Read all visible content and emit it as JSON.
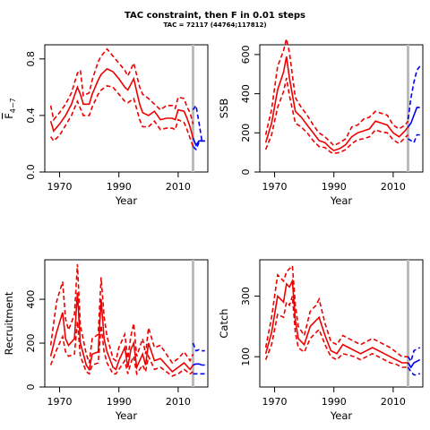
{
  "title": "TAC constraint, then F in 0.01 steps",
  "subtitle": "TAC = 72117 (44764;117812)",
  "chart_data": [
    {
      "type": "line",
      "id": "f",
      "ylabel_main": "F",
      "ylabel_sub": "4−7",
      "xlabel": "Year",
      "xlim": [
        1965,
        2020
      ],
      "ylim": [
        0,
        0.9
      ],
      "xticks": [
        1970,
        1990,
        2010
      ],
      "yticks": [
        0,
        0.4,
        0.8
      ],
      "ytick_labels": [
        "0.0",
        "0.4",
        "0.8"
      ],
      "vline": 2015,
      "historical": {
        "x": [
          1967,
          1968,
          1970,
          1972,
          1974,
          1976,
          1977,
          1978,
          1980,
          1981,
          1983,
          1984,
          1986,
          1988,
          1990,
          1992,
          1993,
          1995,
          1997,
          1998,
          2000,
          2002,
          2004,
          2006,
          2008,
          2009,
          2010,
          2012,
          2013,
          2014,
          2015
        ],
        "median": [
          0.36,
          0.29,
          0.34,
          0.4,
          0.48,
          0.6,
          0.55,
          0.48,
          0.48,
          0.55,
          0.65,
          0.69,
          0.73,
          0.71,
          0.66,
          0.6,
          0.58,
          0.66,
          0.48,
          0.42,
          0.4,
          0.43,
          0.37,
          0.38,
          0.38,
          0.37,
          0.44,
          0.43,
          0.38,
          0.32,
          0.24
        ],
        "upper": [
          0.47,
          0.37,
          0.42,
          0.48,
          0.56,
          0.7,
          0.72,
          0.54,
          0.56,
          0.65,
          0.78,
          0.82,
          0.87,
          0.82,
          0.77,
          0.72,
          0.68,
          0.77,
          0.6,
          0.55,
          0.52,
          0.48,
          0.44,
          0.47,
          0.47,
          0.45,
          0.53,
          0.52,
          0.46,
          0.42,
          0.34
        ],
        "lower": [
          0.25,
          0.22,
          0.26,
          0.33,
          0.4,
          0.5,
          0.45,
          0.4,
          0.4,
          0.46,
          0.55,
          0.58,
          0.61,
          0.6,
          0.55,
          0.5,
          0.49,
          0.52,
          0.37,
          0.32,
          0.32,
          0.36,
          0.3,
          0.31,
          0.31,
          0.3,
          0.37,
          0.35,
          0.3,
          0.24,
          0.18
        ]
      },
      "projection": {
        "x": [
          2015,
          2016,
          2017,
          2018,
          2019
        ],
        "median": [
          0.24,
          0.19,
          0.22,
          0.22,
          0.22
        ],
        "upper": [
          0.44,
          0.47,
          0.35,
          0.22,
          0.22
        ],
        "lower": [
          0.18,
          0.16,
          0.21,
          0.22,
          0.22
        ]
      }
    },
    {
      "type": "line",
      "id": "ssb",
      "ylabel": "SSB",
      "xlabel": "Year",
      "xlim": [
        1965,
        2020
      ],
      "ylim": [
        0,
        650
      ],
      "xticks": [
        1970,
        1990,
        2010
      ],
      "yticks": [
        0,
        200,
        400,
        600
      ],
      "ytick_labels": [
        "0",
        "200",
        "400",
        "600"
      ],
      "vline": 2015,
      "historical": {
        "x": [
          1967,
          1969,
          1971,
          1973,
          1974,
          1975,
          1977,
          1979,
          1981,
          1983,
          1985,
          1987,
          1989,
          1990,
          1992,
          1994,
          1996,
          1998,
          2000,
          2002,
          2004,
          2006,
          2008,
          2010,
          2012,
          2014,
          2015
        ],
        "median": [
          150,
          250,
          420,
          510,
          590,
          480,
          310,
          280,
          240,
          200,
          160,
          150,
          120,
          110,
          120,
          140,
          180,
          200,
          210,
          220,
          260,
          250,
          240,
          200,
          180,
          210,
          230
        ],
        "upper": [
          190,
          320,
          540,
          620,
          680,
          610,
          380,
          330,
          290,
          240,
          200,
          180,
          150,
          135,
          150,
          170,
          230,
          240,
          270,
          280,
          310,
          300,
          290,
          240,
          220,
          240,
          260
        ],
        "lower": [
          115,
          190,
          330,
          410,
          480,
          390,
          250,
          230,
          200,
          160,
          130,
          125,
          100,
          95,
          100,
          115,
          145,
          165,
          170,
          180,
          215,
          205,
          200,
          165,
          145,
          175,
          190
        ]
      },
      "projection": {
        "x": [
          2015,
          2016,
          2017,
          2018,
          2019
        ],
        "median": [
          230,
          250,
          290,
          330,
          330
        ],
        "upper": [
          270,
          380,
          460,
          520,
          540
        ],
        "lower": [
          170,
          160,
          150,
          190,
          190
        ]
      }
    },
    {
      "type": "line",
      "id": "recruitment",
      "ylabel": "Recruitment",
      "xlabel": "Year",
      "xlim": [
        1965,
        2020
      ],
      "ylim": [
        0,
        580
      ],
      "xticks": [
        1970,
        1990,
        2010
      ],
      "yticks": [
        0,
        200,
        400
      ],
      "ytick_labels": [
        "0",
        "200",
        "400"
      ],
      "vline": 2015,
      "historical": {
        "x": [
          1967,
          1969,
          1971,
          1972,
          1973,
          1975,
          1976,
          1977,
          1979,
          1980,
          1981,
          1983,
          1984,
          1985,
          1986,
          1988,
          1989,
          1990,
          1992,
          1993,
          1994,
          1995,
          1996,
          1998,
          1999,
          2000,
          2002,
          2004,
          2006,
          2008,
          2010,
          2012,
          2014,
          2015
        ],
        "median": [
          140,
          250,
          340,
          220,
          190,
          220,
          430,
          200,
          100,
          80,
          150,
          160,
          400,
          220,
          160,
          90,
          80,
          120,
          180,
          90,
          170,
          200,
          90,
          150,
          100,
          200,
          120,
          130,
          100,
          70,
          90,
          110,
          80,
          100
        ],
        "upper": [
          190,
          390,
          480,
          310,
          260,
          330,
          560,
          280,
          150,
          110,
          220,
          240,
          500,
          320,
          230,
          130,
          120,
          180,
          240,
          130,
          230,
          290,
          140,
          220,
          150,
          270,
          180,
          190,
          150,
          110,
          130,
          160,
          120,
          150
        ],
        "lower": [
          100,
          170,
          230,
          160,
          140,
          150,
          300,
          140,
          70,
          60,
          100,
          110,
          280,
          160,
          110,
          60,
          60,
          80,
          120,
          60,
          110,
          140,
          60,
          100,
          70,
          140,
          80,
          90,
          70,
          50,
          60,
          80,
          60,
          70
        ]
      },
      "projection": {
        "x": [
          2015,
          2016,
          2017,
          2018,
          2019
        ],
        "median": [
          100,
          105,
          105,
          100,
          100
        ],
        "upper": [
          200,
          165,
          170,
          165,
          165
        ],
        "lower": [
          60,
          60,
          60,
          60,
          60
        ]
      }
    },
    {
      "type": "line",
      "id": "catch",
      "ylabel": "Catch",
      "xlabel": "Year",
      "xlim": [
        1965,
        2020
      ],
      "ylim": [
        0,
        420
      ],
      "xticks": [
        1970,
        1990,
        2010
      ],
      "yticks": [
        100,
        300
      ],
      "ytick_labels": [
        "100",
        "300"
      ],
      "vline": 2015,
      "historical": {
        "x": [
          1967,
          1969,
          1971,
          1973,
          1974,
          1975,
          1976,
          1977,
          1978,
          1980,
          1982,
          1984,
          1985,
          1987,
          1989,
          1991,
          1993,
          1995,
          1997,
          1999,
          2001,
          2003,
          2005,
          2007,
          2009,
          2011,
          2013,
          2014,
          2015
        ],
        "median": [
          110,
          180,
          300,
          280,
          340,
          330,
          350,
          220,
          160,
          140,
          200,
          220,
          230,
          170,
          120,
          110,
          140,
          130,
          120,
          110,
          120,
          130,
          120,
          110,
          100,
          90,
          80,
          80,
          80
        ],
        "upper": [
          130,
          230,
          370,
          350,
          380,
          390,
          400,
          270,
          200,
          170,
          250,
          270,
          290,
          210,
          150,
          140,
          170,
          160,
          150,
          140,
          150,
          160,
          150,
          140,
          130,
          115,
          100,
          100,
          100
        ],
        "lower": [
          90,
          140,
          240,
          230,
          280,
          270,
          300,
          180,
          130,
          115,
          160,
          180,
          190,
          140,
          100,
          90,
          110,
          105,
          100,
          90,
          100,
          110,
          100,
          90,
          80,
          75,
          65,
          65,
          65
        ]
      },
      "projection": {
        "x": [
          2015,
          2016,
          2017,
          2018,
          2019
        ],
        "median": [
          80,
          65,
          80,
          85,
          90
        ],
        "upper": [
          100,
          85,
          120,
          125,
          130
        ],
        "lower": [
          65,
          50,
          40,
          40,
          45
        ]
      }
    }
  ]
}
